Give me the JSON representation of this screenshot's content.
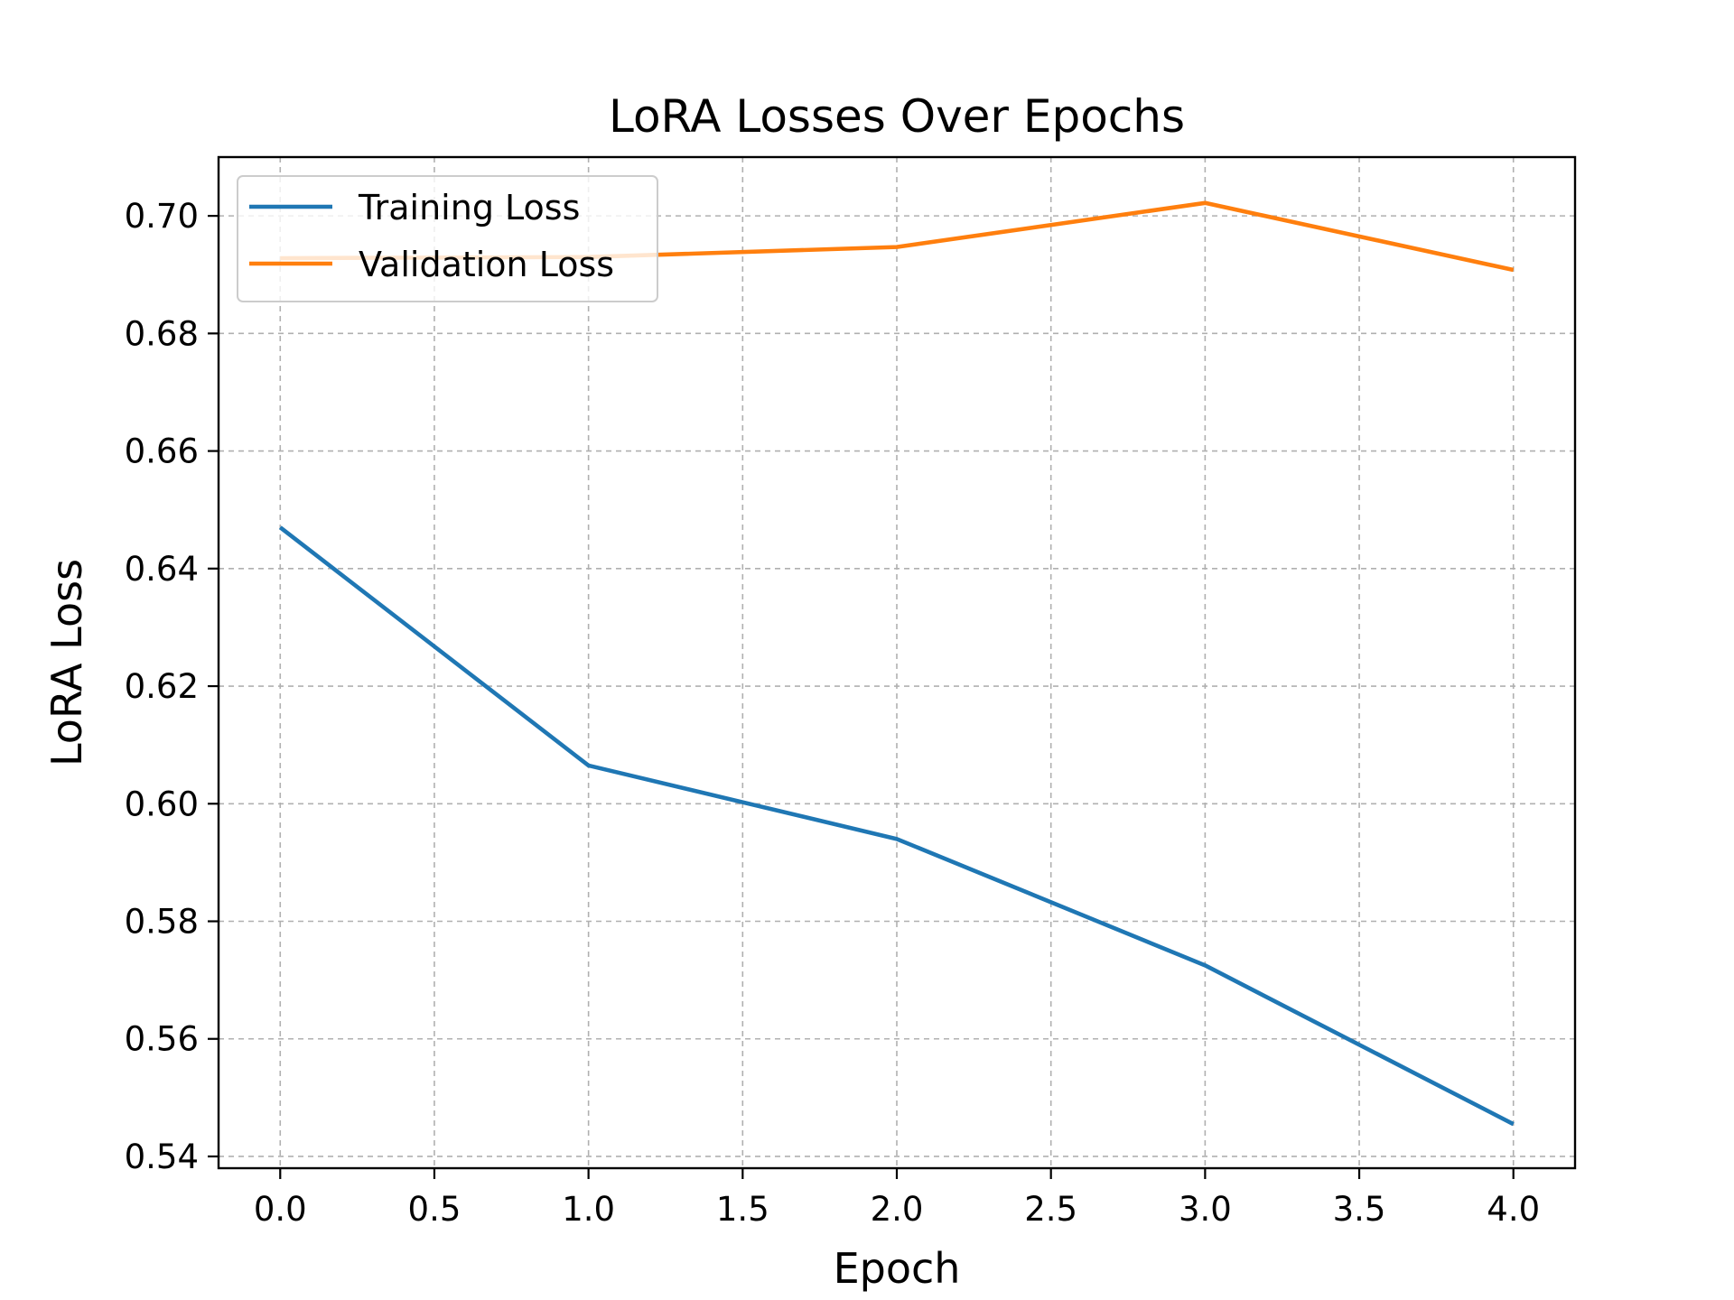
{
  "chart_data": {
    "type": "line",
    "title": "LoRA Losses Over Epochs",
    "xlabel": "Epoch",
    "ylabel": "LoRA Loss",
    "x": [
      0,
      1,
      2,
      3,
      4
    ],
    "xlim": [
      -0.2,
      4.2
    ],
    "ylim": [
      0.538,
      0.71
    ],
    "xticks": [
      "0.0",
      "0.5",
      "1.0",
      "1.5",
      "2.0",
      "2.5",
      "3.0",
      "3.5",
      "4.0"
    ],
    "xtick_values": [
      0,
      0.5,
      1,
      1.5,
      2,
      2.5,
      3,
      3.5,
      4
    ],
    "yticks": [
      "0.54",
      "0.56",
      "0.58",
      "0.60",
      "0.62",
      "0.64",
      "0.66",
      "0.68",
      "0.70"
    ],
    "ytick_values": [
      0.54,
      0.56,
      0.58,
      0.6,
      0.62,
      0.64,
      0.66,
      0.68,
      0.7
    ],
    "grid": true,
    "legend_position": "top-left",
    "series": [
      {
        "name": "Training Loss",
        "color": "#1f77b4",
        "values": [
          0.647,
          0.6065,
          0.594,
          0.5725,
          0.5455
        ]
      },
      {
        "name": "Validation Loss",
        "color": "#ff7f0e",
        "values": [
          0.6928,
          0.693,
          0.6947,
          0.7022,
          0.6908
        ]
      }
    ]
  }
}
